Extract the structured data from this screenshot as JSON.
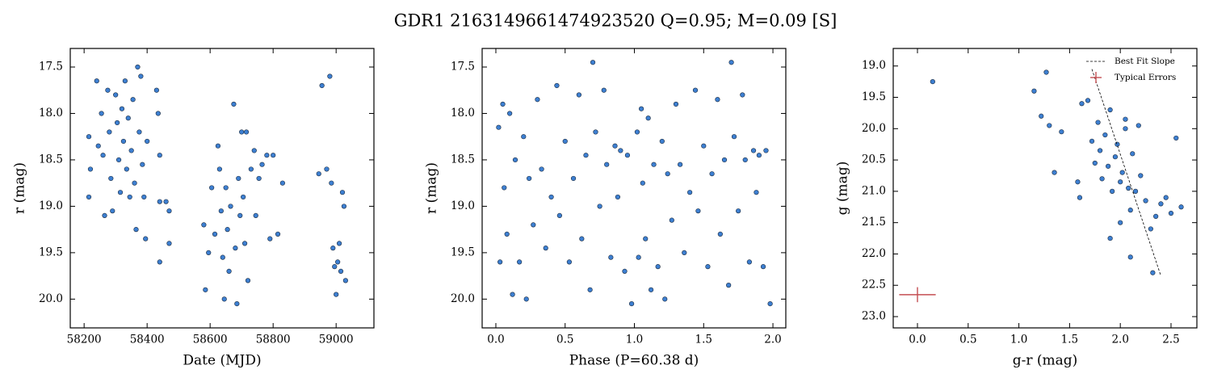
{
  "title": "GDR1 2163149661474923520  Q=0.95; M=0.09 [S]",
  "chart_data": [
    {
      "type": "scatter",
      "xlabel": "Date (MJD)",
      "ylabel": "r (mag)",
      "color": "#3d7fd1",
      "xlim": [
        58156,
        59120
      ],
      "ylim": [
        20.31,
        17.3
      ],
      "xticks": [
        58200,
        58400,
        58600,
        58800,
        59000
      ],
      "yticks": [
        17.5,
        {
          "value": 18,
          "label": "18.0"
        },
        18.5,
        {
          "value": 19,
          "label": "19.0"
        },
        19.5,
        {
          "value": 20,
          "label": "20.0"
        }
      ],
      "x": [
        58215,
        58215,
        58220,
        58240,
        58245,
        58255,
        58260,
        58265,
        58275,
        58280,
        58285,
        58290,
        58300,
        58305,
        58310,
        58315,
        58320,
        58325,
        58330,
        58335,
        58340,
        58345,
        58350,
        58355,
        58360,
        58365,
        58370,
        58375,
        58380,
        58385,
        58390,
        58395,
        58400,
        58430,
        58435,
        58440,
        58440,
        58440,
        58460,
        58470,
        58470,
        58580,
        58585,
        58595,
        58605,
        58615,
        58625,
        58630,
        58635,
        58640,
        58645,
        58650,
        58655,
        58660,
        58665,
        58675,
        58680,
        58685,
        58690,
        58695,
        58700,
        58705,
        58710,
        58715,
        58720,
        58730,
        58740,
        58745,
        58755,
        58765,
        58780,
        58790,
        58800,
        58815,
        58830,
        58945,
        58955,
        58970,
        58980,
        58985,
        58990,
        58995,
        59000,
        59005,
        59010,
        59015,
        59020,
        59025,
        59030
      ],
      "y": [
        18.25,
        18.9,
        18.6,
        17.65,
        18.35,
        18.0,
        18.45,
        19.1,
        17.75,
        18.2,
        18.7,
        19.05,
        17.8,
        18.1,
        18.5,
        18.85,
        17.95,
        18.3,
        17.65,
        18.6,
        18.05,
        18.9,
        18.4,
        17.85,
        18.75,
        19.25,
        17.5,
        18.2,
        17.6,
        18.55,
        18.9,
        19.35,
        18.3,
        17.75,
        18.0,
        18.45,
        18.95,
        19.6,
        18.95,
        19.05,
        19.4,
        19.2,
        19.9,
        19.5,
        18.8,
        19.3,
        18.35,
        18.6,
        19.05,
        19.55,
        20.0,
        18.8,
        19.25,
        19.7,
        19.0,
        17.9,
        19.45,
        20.05,
        18.7,
        19.1,
        18.2,
        18.9,
        19.4,
        18.2,
        19.8,
        18.6,
        18.4,
        19.1,
        18.7,
        18.55,
        18.45,
        19.35,
        18.45,
        19.3,
        18.75,
        18.65,
        17.7,
        18.6,
        17.6,
        18.75,
        19.45,
        19.65,
        19.95,
        19.6,
        19.4,
        19.7,
        18.85,
        19.0,
        19.8
      ]
    },
    {
      "type": "scatter",
      "xlabel": "Phase (P=60.38 d)",
      "ylabel": "r (mag)",
      "color": "#3d7fd1",
      "xlim": [
        -0.099,
        2.093
      ],
      "ylim": [
        20.31,
        17.3
      ],
      "xticks": [
        {
          "value": 0,
          "label": "0.0"
        },
        0.5,
        {
          "value": 1,
          "label": "1.0"
        },
        1.5,
        {
          "value": 2,
          "label": "2.0"
        }
      ],
      "yticks": [
        17.5,
        {
          "value": 18,
          "label": "18.0"
        },
        18.5,
        {
          "value": 19,
          "label": "19.0"
        },
        19.5,
        {
          "value": 20,
          "label": "20.0"
        }
      ],
      "x": [
        0.02,
        0.03,
        0.05,
        0.06,
        0.08,
        0.1,
        0.12,
        0.14,
        0.17,
        0.2,
        0.22,
        0.24,
        0.27,
        0.3,
        0.33,
        0.36,
        0.4,
        0.44,
        0.46,
        0.5,
        0.53,
        0.56,
        0.6,
        0.62,
        0.65,
        0.68,
        0.7,
        0.72,
        0.75,
        0.78,
        0.8,
        0.83,
        0.86,
        0.88,
        0.9,
        0.93,
        0.95,
        0.98,
        1.02,
        1.03,
        1.05,
        1.06,
        1.08,
        1.1,
        1.12,
        1.14,
        1.17,
        1.2,
        1.22,
        1.24,
        1.27,
        1.3,
        1.33,
        1.36,
        1.4,
        1.44,
        1.46,
        1.5,
        1.53,
        1.56,
        1.6,
        1.62,
        1.65,
        1.68,
        1.7,
        1.72,
        1.75,
        1.78,
        1.8,
        1.83,
        1.86,
        1.88,
        1.9,
        1.93,
        1.95,
        1.98
      ],
      "y": [
        18.15,
        19.6,
        17.9,
        18.8,
        19.3,
        18.0,
        19.95,
        18.5,
        19.6,
        18.25,
        20.0,
        18.7,
        19.2,
        17.85,
        18.6,
        19.45,
        18.9,
        17.7,
        19.1,
        18.3,
        19.6,
        18.7,
        17.8,
        19.35,
        18.45,
        19.9,
        17.45,
        18.2,
        19.0,
        17.75,
        18.55,
        19.55,
        18.35,
        18.9,
        18.4,
        19.7,
        18.45,
        20.05,
        18.2,
        19.55,
        17.95,
        18.75,
        19.35,
        18.05,
        19.9,
        18.55,
        19.65,
        18.3,
        20.0,
        18.65,
        19.15,
        17.9,
        18.55,
        19.5,
        18.85,
        17.75,
        19.05,
        18.35,
        19.65,
        18.65,
        17.85,
        19.3,
        18.5,
        19.85,
        17.45,
        18.25,
        19.05,
        17.8,
        18.5,
        19.6,
        18.4,
        18.85,
        18.45,
        19.65,
        18.4,
        20.05
      ]
    },
    {
      "type": "scatter",
      "xlabel": "g-r (mag)",
      "ylabel": "g (mag)",
      "color": "#3d7fd1",
      "xlim": [
        -0.239,
        2.755
      ],
      "ylim": [
        23.18,
        18.72
      ],
      "xticks": [
        {
          "value": 0,
          "label": "0.0"
        },
        0.5,
        {
          "value": 1,
          "label": "1.0"
        },
        1.5,
        {
          "value": 2,
          "label": "2.0"
        },
        2.5
      ],
      "yticks": [
        {
          "value": 19,
          "label": "19.0"
        },
        19.5,
        {
          "value": 20,
          "label": "20.0"
        },
        20.5,
        {
          "value": 21,
          "label": "21.0"
        },
        21.5,
        {
          "value": 22,
          "label": "22.0"
        },
        22.5,
        {
          "value": 23,
          "label": "23.0"
        }
      ],
      "x": [
        0.15,
        1.15,
        1.22,
        1.27,
        1.3,
        1.35,
        1.42,
        1.58,
        1.6,
        1.62,
        1.68,
        1.72,
        1.75,
        1.78,
        1.8,
        1.82,
        1.85,
        1.88,
        1.9,
        1.92,
        1.95,
        1.97,
        2.0,
        2.02,
        2.05,
        2.08,
        2.1,
        2.12,
        2.15,
        2.18,
        2.2,
        2.25,
        2.3,
        2.35,
        2.4,
        2.45,
        2.5,
        2.55,
        2.6,
        2.1,
        2.32,
        1.9,
        2.0,
        2.05
      ],
      "y": [
        19.25,
        19.4,
        19.8,
        19.1,
        19.95,
        20.7,
        20.05,
        20.85,
        21.1,
        19.6,
        19.55,
        20.2,
        20.55,
        19.9,
        20.35,
        20.8,
        20.1,
        20.6,
        19.7,
        21.0,
        20.45,
        20.25,
        21.5,
        20.7,
        20.0,
        20.95,
        21.3,
        20.4,
        21.0,
        19.95,
        20.75,
        21.15,
        21.6,
        21.4,
        21.2,
        21.1,
        21.35,
        20.15,
        21.25,
        22.05,
        22.3,
        21.75,
        20.85,
        19.85
      ],
      "legend": "upper right",
      "fit_line": {
        "name": "Best Fit Slope",
        "color": "#000000",
        "x": [
          1.72,
          2.4
        ],
        "y": [
          19.05,
          22.35
        ]
      },
      "typical_errors": {
        "name": "Typical Errors",
        "color": "#c44e52",
        "x": 0.0,
        "y": 22.65,
        "xerr": 0.18,
        "yerr": 0.12
      }
    }
  ]
}
